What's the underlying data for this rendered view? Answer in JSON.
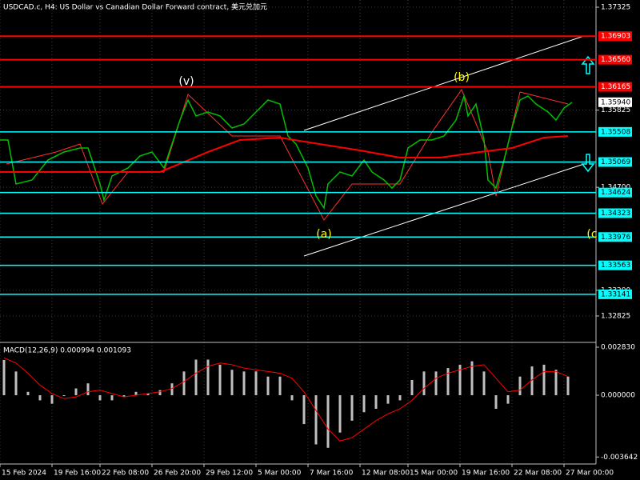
{
  "chart_data": [
    {
      "type": "line",
      "title": "USDCAD.c, H4: US Dollar vs Canadian Dollar Forward contract, 美元兑加元",
      "xlim": [
        0,
        149
      ],
      "ylim": [
        1.3244,
        1.3743
      ],
      "grid": true,
      "xticks": [
        {
          "value": 0,
          "label": "15 Feb 2024"
        },
        {
          "value": 13,
          "label": "19 Feb 16:00"
        },
        {
          "value": 25,
          "label": "22 Feb 08:00"
        },
        {
          "value": 38,
          "label": "26 Feb 20:00"
        },
        {
          "value": 51,
          "label": "29 Feb 12:00"
        },
        {
          "value": 64,
          "label": "5 Mar 00:00"
        },
        {
          "value": 77,
          "label": "7 Mar 16:00"
        },
        {
          "value": 90,
          "label": "12 Mar 08:00"
        },
        {
          "value": 102,
          "label": "15 Mar 00:00"
        },
        {
          "value": 115,
          "label": "19 Mar 16:00"
        },
        {
          "value": 128,
          "label": "22 Mar 08:00"
        },
        {
          "value": 141,
          "label": "27 Mar 00:00"
        }
      ],
      "yticks": [
        1.37325,
        1.35825,
        {
          "value": 1.347,
          "label": "1.34700"
        },
        {
          "value": 1.332,
          "label": "1.33200"
        },
        1.32825
      ],
      "levels": [
        {
          "value": 1.36903,
          "label": "1.36903",
          "color": "#ff0000"
        },
        {
          "value": 1.3656,
          "label": "1.36560",
          "color": "#ff0000"
        },
        {
          "value": 1.36165,
          "label": "1.36165",
          "color": "#ff0000"
        },
        {
          "value": 1.35508,
          "label": "1.35508",
          "color": "#00ffff"
        },
        {
          "value": 1.35069,
          "label": "1.35069",
          "color": "#00ffff"
        },
        {
          "value": 1.34624,
          "label": "1.34624",
          "color": "#00ffff"
        },
        {
          "value": 1.34323,
          "label": "1.34323",
          "color": "#00ffff"
        },
        {
          "value": 1.33976,
          "label": "1.33976",
          "color": "#00ffff"
        },
        {
          "value": 1.33563,
          "label": "1.33563",
          "color": "#00ffff"
        },
        {
          "value": 1.33141,
          "label": "1.33141",
          "color": "#00ffff"
        }
      ],
      "current_price": {
        "value": 1.3594,
        "label": "1.35940"
      },
      "annotations": [
        "(v)",
        "(b)",
        "(a)",
        "(c"
      ],
      "series": [
        {
          "color": "#00c000",
          "x": [
            0,
            2,
            4,
            8,
            12,
            16,
            20,
            22,
            25,
            26,
            28,
            32,
            35,
            38,
            41,
            43,
            45,
            47,
            49,
            52,
            55,
            58,
            61,
            64,
            67,
            70,
            72,
            74,
            77,
            79,
            81,
            82,
            85,
            88,
            91,
            93,
            96,
            98,
            100,
            102,
            105,
            108,
            111,
            114,
            116,
            117,
            119,
            121,
            122,
            124,
            126,
            128,
            130,
            132,
            134,
            137,
            139,
            141,
            143
          ],
          "values": [
            1.3539,
            1.3539,
            1.34749,
            1.34807,
            1.35098,
            1.35215,
            1.35273,
            1.35273,
            1.34749,
            1.34515,
            1.34865,
            1.34982,
            1.35157,
            1.35215,
            1.34982,
            1.35332,
            1.35681,
            1.35973,
            1.3574,
            1.35798,
            1.3574,
            1.35565,
            1.35623,
            1.35798,
            1.35973,
            1.35914,
            1.35448,
            1.35332,
            1.34982,
            1.34574,
            1.34399,
            1.34749,
            1.34924,
            1.34865,
            1.35098,
            1.34924,
            1.34807,
            1.3469,
            1.34807,
            1.35273,
            1.3539,
            1.3539,
            1.35448,
            1.35681,
            1.36031,
            1.3574,
            1.35914,
            1.3539,
            1.34807,
            1.3469,
            1.35098,
            1.35565,
            1.35973,
            1.36031,
            1.35914,
            1.35798,
            1.35681,
            1.35856,
            1.35938
          ]
        },
        {
          "color": "#ff0000",
          "x": [
            0,
            20,
            40,
            52,
            60,
            70,
            76,
            90,
            100,
            110,
            120,
            128,
            136,
            142
          ],
          "values": [
            1.34924,
            1.34924,
            1.34924,
            1.35215,
            1.3539,
            1.35425,
            1.35367,
            1.35238,
            1.35133,
            1.35133,
            1.35215,
            1.35273,
            1.35425,
            1.35448
          ]
        }
      ]
    },
    {
      "type": "bar",
      "title": "MACD(12,26,9) 0.000994 0.001093",
      "xlim": [
        0,
        149
      ],
      "ylim": [
        -0.00396,
        0.00302
      ],
      "yticks": [
        {
          "value": 0.00283,
          "label": "0.002830"
        },
        {
          "value": 0,
          "label": "0.000000"
        },
        {
          "value": -0.003642,
          "label": "-0.003642"
        }
      ],
      "x": [
        1,
        4,
        7,
        10,
        13,
        16,
        19,
        22,
        25,
        28,
        31,
        34,
        37,
        40,
        43,
        46,
        49,
        52,
        55,
        58,
        61,
        64,
        67,
        70,
        73,
        76,
        79,
        82,
        85,
        88,
        91,
        94,
        97,
        100,
        103,
        106,
        109,
        112,
        115,
        118,
        121,
        124,
        127,
        130,
        133,
        136,
        139,
        142
      ],
      "series": [
        {
          "color": "#c0c0c0",
          "values": [
            0.00208,
            0.0014,
            0.0002,
            -0.0003,
            -0.0005,
            -5e-05,
            0.0004,
            0.0007,
            -0.0003,
            -0.0003,
            -0.0001,
            0.0002,
            0.0001,
            0.0003,
            0.0007,
            0.0014,
            0.0021,
            0.0021,
            0.0018,
            0.0015,
            0.0014,
            0.0014,
            0.0011,
            0.0011,
            -0.0003,
            -0.0017,
            -0.0029,
            -0.0031,
            -0.0022,
            -0.0015,
            -0.001,
            -0.0008,
            -0.0005,
            -0.0003,
            0.0009,
            0.0014,
            0.0014,
            0.0016,
            0.0018,
            0.002,
            0.0014,
            -0.0008,
            -0.0005,
            0.0011,
            0.0017,
            0.0018,
            0.0015,
            0.0011
          ]
        },
        {
          "type": "line",
          "color": "#ff0000",
          "values": [
            0.0022,
            0.0019,
            0.0013,
            0.0006,
            0.0001,
            -0.0002,
            -0.0001,
            0.0002,
            0.0003,
            0.0001,
            -0.0001,
            0,
            0.0001,
            0.0002,
            0.0004,
            0.0008,
            0.0013,
            0.0017,
            0.0019,
            0.0018,
            0.0016,
            0.0015,
            0.0014,
            0.0013,
            0.001,
            0.0002,
            -0.0009,
            -0.002,
            -0.0027,
            -0.0025,
            -0.002,
            -0.0015,
            -0.0011,
            -0.0008,
            -0.0003,
            0.0004,
            0.001,
            0.0013,
            0.0015,
            0.0017,
            0.0018,
            0.001,
            0.0002,
            0.0003,
            0.0009,
            0.0014,
            0.0014,
            0.0011
          ]
        }
      ]
    }
  ]
}
